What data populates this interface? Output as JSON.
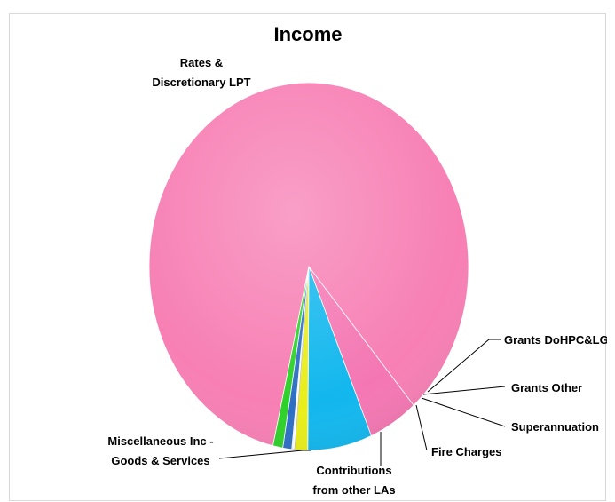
{
  "chart_data": {
    "type": "pie",
    "title": "Income",
    "slices": [
      {
        "label": "Rates & Discretionary LPT",
        "label_lines": [
          "Rates &",
          "Discretionary LPT"
        ],
        "value": 85.0,
        "color": "#f77fb4"
      },
      {
        "label": "Miscellaneous Inc - Goods & Services",
        "label_lines": [
          "Miscellaneous Inc -",
          "Goods & Services"
        ],
        "value": 5.0,
        "color": "#f477b3"
      },
      {
        "label": "Contributions from other LAs",
        "label_lines": [
          "Contributions",
          "from other LAs"
        ],
        "value": 6.5,
        "color": "#12b7ee"
      },
      {
        "label": "Fire Charges",
        "label_lines": [
          "Fire Charges"
        ],
        "value": 1.3,
        "color": "#e9ee1a"
      },
      {
        "label": "Superannuation",
        "label_lines": [
          "Superannuation"
        ],
        "value": 0.3,
        "color": "#ffffff"
      },
      {
        "label": "Grants Other",
        "label_lines": [
          "Grants Other"
        ],
        "value": 0.9,
        "color": "#2e6fc4"
      },
      {
        "label": "Grants DoHPC&LG",
        "label_lines": [
          "Grants DoHPC&LG"
        ],
        "value": 1.0,
        "color": "#2ed12a"
      }
    ],
    "legend": "none"
  }
}
